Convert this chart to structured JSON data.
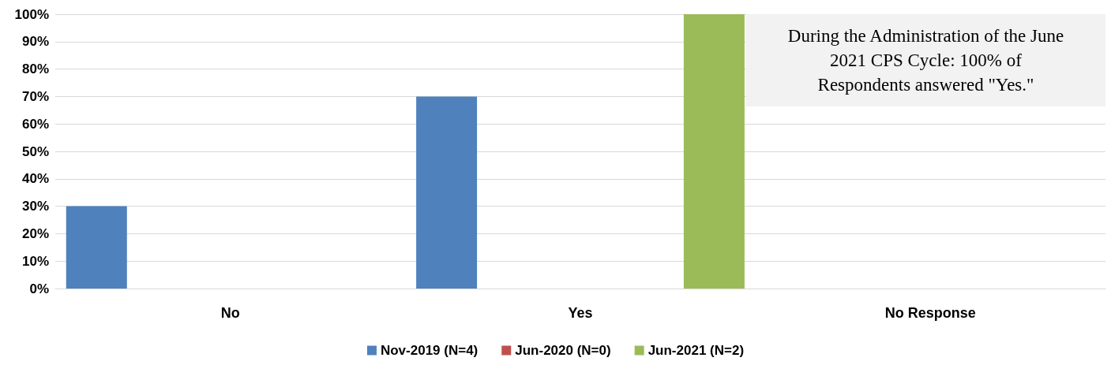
{
  "chart_data": {
    "type": "bar",
    "categories": [
      "No",
      "Yes",
      "No Response"
    ],
    "series": [
      {
        "name": "Nov-2019 (N=4)",
        "color": "#4f81bd",
        "values": [
          30,
          70,
          0
        ]
      },
      {
        "name": "Jun-2020 (N=0)",
        "color": "#c0504d",
        "values": [
          0,
          0,
          0
        ]
      },
      {
        "name": "Jun-2021 (N=2)",
        "color": "#9bbb59",
        "values": [
          0,
          100,
          0
        ]
      }
    ],
    "ylim": [
      0,
      100
    ],
    "yticks": [
      {
        "value": 0,
        "label": "0%"
      },
      {
        "value": 10,
        "label": "10%"
      },
      {
        "value": 20,
        "label": "20%"
      },
      {
        "value": 30,
        "label": "30%"
      },
      {
        "value": 40,
        "label": "40%"
      },
      {
        "value": 50,
        "label": "50%"
      },
      {
        "value": 60,
        "label": "60%"
      },
      {
        "value": 70,
        "label": "70%"
      },
      {
        "value": 80,
        "label": "80%"
      },
      {
        "value": 90,
        "label": "90%"
      },
      {
        "value": 100,
        "label": "100%"
      }
    ],
    "grid": "y",
    "legend": "bottom",
    "annotations": [
      "During the Administration of the June 2021 CPS Cycle: 100% of Respondents answered \"Yes.\""
    ]
  }
}
